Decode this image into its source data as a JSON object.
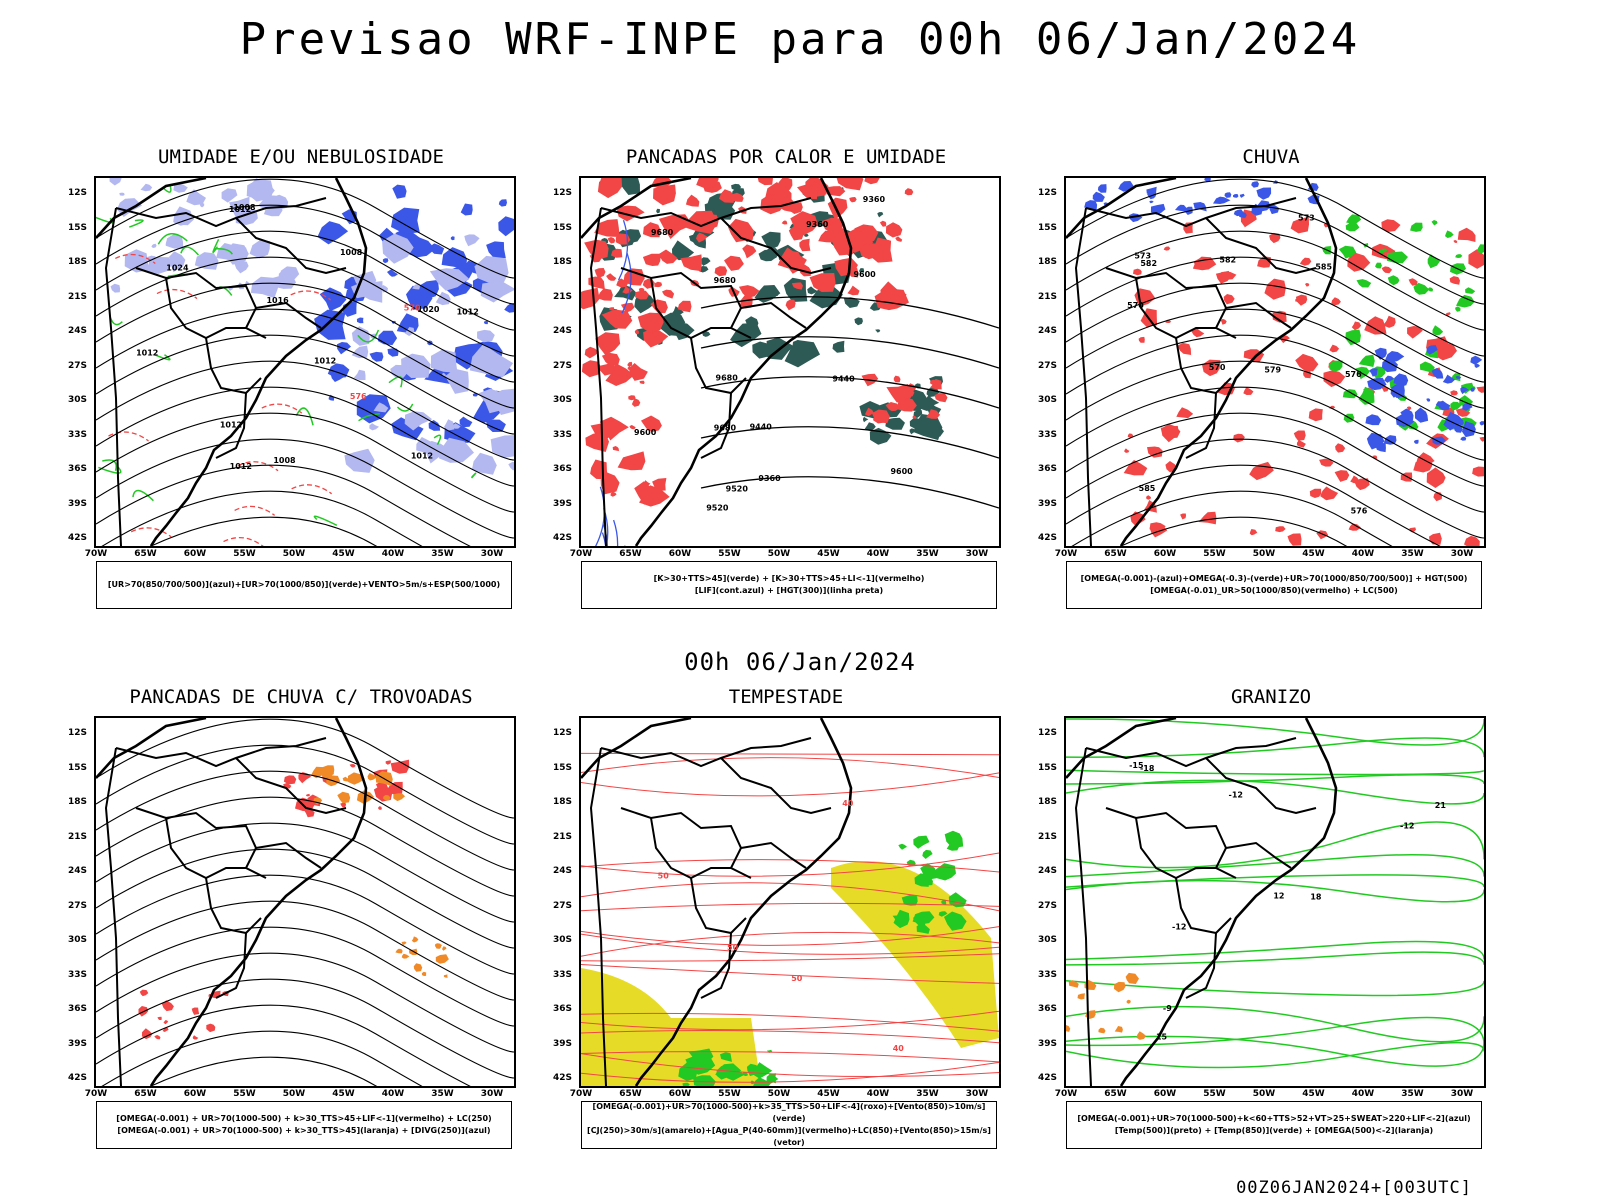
{
  "main_title": "Previsao WRF-INPE  para 00h 06/Jan/2024",
  "mid_title": "00h 06/Jan/2024",
  "footer": "00Z06JAN2024+[003UTC]",
  "lat_labels": [
    "12S",
    "15S",
    "18S",
    "21S",
    "24S",
    "27S",
    "30S",
    "33S",
    "36S",
    "39S",
    "42S"
  ],
  "lon_labels": [
    "70W",
    "65W",
    "60W",
    "55W",
    "50W",
    "45W",
    "40W",
    "35W",
    "30W"
  ],
  "colors": {
    "blue": "#3a57e8",
    "lightblue": "#b3b8f0",
    "green": "#22c922",
    "red": "#f24545",
    "darkteal": "#2d5a54",
    "orange": "#f08a28",
    "yellow": "#e6dc28"
  },
  "panels": [
    {
      "title": "UMIDADE E/OU NEBULOSIDADE",
      "legend": [
        "[UR>70(850/700/500)](azul)+[UR>70(1000/850)](verde)+VENTO>5m/s+ESP(500/1000)"
      ],
      "labels": [
        "1012",
        "1012",
        "1012",
        "1012",
        "1012",
        "1008",
        "1008",
        "1012",
        "1016",
        "1020",
        "1024",
        "576",
        "570",
        "1008",
        "1012"
      ]
    },
    {
      "title": "PANCADAS POR CALOR E UMIDADE",
      "legend": [
        "[K>30+TTS>45](verde) + [K>30+TTS>45+LI<-1](vermelho)",
        "[LIF](cont.azul) + [HGT(300)](linha preta)"
      ],
      "labels": [
        "9680",
        "9680",
        "9680",
        "9600",
        "9680",
        "9600",
        "9520",
        "9600",
        "9440",
        "9520",
        "9440",
        "9360",
        "9360",
        "9360"
      ]
    },
    {
      "title": "CHUVA",
      "legend": [
        "[OMEGA(-0.001)-(azul)+OMEGA(-0.3)-(verde)+UR>70(1000/850/700/500)] + HGT(500)",
        "[OMEGA(-0.01)_UR>50(1000/850)(vermelho) + LC(500)"
      ],
      "labels": [
        "585",
        "582",
        "579",
        "576",
        "573",
        "570",
        "576",
        "573",
        "570",
        "585",
        "582"
      ]
    },
    {
      "title": "PANCADAS DE CHUVA C/ TROVOADAS",
      "legend": [
        "[OMEGA(-0.001) + UR>70(1000-500) + k>30_TTS>45+LIF<-1](vermelho) + LC(250)",
        "[OMEGA(-0.001) + UR>70(1000-500) + k>30_TTS>45](laranja) + [DIVG(250)](azul)"
      ],
      "labels": []
    },
    {
      "title": "TEMPESTADE",
      "legend": [
        "[OMEGA(-0.001)+UR>70(1000-500)+k>35_TTS>50+LIF<-4](roxo)+[Vento(850)>10m/s](verde)",
        "[CJ(250)>30m/s](amarelo)+[Agua_P(40-60mm)](vermelho)+LC(850)+[Vento(850)>15m/s](vetor)"
      ],
      "labels": [
        "50",
        "40",
        "50",
        "40",
        "50"
      ]
    },
    {
      "title": "GRANIZO",
      "legend": [
        "[OMEGA(-0.001)+UR>70(1000-500)+k<60+TTS>52+VT>25+SWEAT>220+LIF<-2](azul)",
        "[Temp(500)](preto) + [Temp(850)](verde) + [OMEGA(500)<-2](laranja)"
      ],
      "labels": [
        "-12",
        "-12",
        "-12",
        "-15",
        "-18",
        "12",
        "15",
        "18",
        "21",
        "-9"
      ]
    }
  ]
}
